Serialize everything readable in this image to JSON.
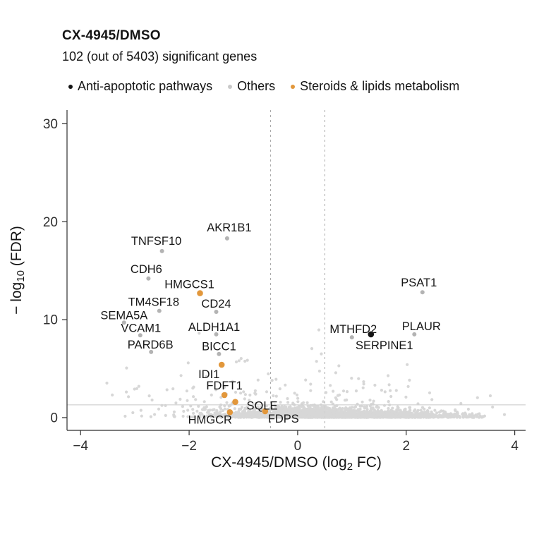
{
  "header": {
    "title": "CX-4945/DMSO",
    "subtitle": "102 (out of 5403) significant genes"
  },
  "legend": {
    "items": [
      {
        "label": "Anti-apoptotic pathways",
        "color": "#141414"
      },
      {
        "label": "Others",
        "color": "#c9c9c9"
      },
      {
        "label": "Steroids & lipids metabolism",
        "color": "#E2973B"
      }
    ]
  },
  "chart_data": {
    "type": "scatter",
    "title": "CX-4945/DMSO",
    "subtitle": "102 (out of 5403) significant genes",
    "significant_genes": 102,
    "total_genes": 5403,
    "xlabel": "CX-4945/DMSO (log2 FC)",
    "xlabel_parts": {
      "pre": "CX-4945/DMSO (log",
      "sub": "2",
      "post": " FC)"
    },
    "ylabel": "-log10 (FDR)",
    "ylabel_parts": {
      "pre": "− log",
      "sub": "10",
      "post": " (FDR)"
    },
    "xlim": [
      -4.25,
      4.2
    ],
    "ylim": [
      -1.3,
      31.4
    ],
    "x_ticks": [
      -4,
      -2,
      0,
      2,
      4
    ],
    "x_tick_labels": [
      "−4",
      "−2",
      "0",
      "2",
      "4"
    ],
    "y_ticks": [
      0,
      10,
      20,
      30
    ],
    "y_tick_labels": [
      "0",
      "10",
      "20",
      "30"
    ],
    "fc_thresholds": [
      -0.5,
      0.5
    ],
    "fdr_threshold_y": 1.3,
    "grid": false,
    "legend_position": "top",
    "categories": {
      "anti_apoptotic": "#141414",
      "others": "#b3b3b3",
      "steroids_lipids": "#E2973B"
    },
    "genes": [
      {
        "name": "TNFSF10",
        "x": -2.5,
        "y": 17.0,
        "category": "others",
        "label_offset": [
          -8,
          -9
        ]
      },
      {
        "name": "AKR1B1",
        "x": -1.3,
        "y": 18.3,
        "category": "others",
        "label_offset": [
          3,
          -10
        ]
      },
      {
        "name": "CDH6",
        "x": -2.75,
        "y": 14.2,
        "category": "others",
        "label_offset": [
          -3,
          -8
        ]
      },
      {
        "name": "HMGCS1",
        "x": -1.8,
        "y": 12.7,
        "category": "steroids_lipids",
        "label_offset": [
          -15,
          -7
        ]
      },
      {
        "name": "TM4SF18",
        "x": -2.55,
        "y": 10.9,
        "category": "others",
        "label_offset": [
          -8,
          -7
        ]
      },
      {
        "name": "CD24",
        "x": -1.5,
        "y": 10.8,
        "category": "others",
        "label_offset": [
          0,
          -6
        ]
      },
      {
        "name": "SEMA5A",
        "x": -3.2,
        "y": 9.7,
        "category": "others",
        "label_offset": [
          0,
          -5
        ]
      },
      {
        "name": "VCAM1",
        "x": -2.9,
        "y": 8.4,
        "category": "others",
        "label_offset": [
          1,
          -5
        ]
      },
      {
        "name": "ALDH1A1",
        "x": -1.5,
        "y": 8.5,
        "category": "others",
        "label_offset": [
          -3,
          -5
        ]
      },
      {
        "name": "PARD6B",
        "x": -2.7,
        "y": 6.7,
        "category": "others",
        "label_offset": [
          -1,
          -5
        ]
      },
      {
        "name": "BICC1",
        "x": -1.45,
        "y": 6.5,
        "category": "others",
        "label_offset": [
          0,
          -5
        ]
      },
      {
        "name": "IDI1",
        "x": -1.4,
        "y": 5.4,
        "category": "steroids_lipids",
        "label_offset": [
          -18,
          19
        ]
      },
      {
        "name": "FDFT1",
        "x": -1.35,
        "y": 2.3,
        "category": "steroids_lipids",
        "label_offset": [
          0,
          -8
        ]
      },
      {
        "name": "SQLE",
        "x": -1.15,
        "y": 1.6,
        "category": "steroids_lipids",
        "label_offset": [
          38,
          11
        ]
      },
      {
        "name": "HMGCR",
        "x": -1.25,
        "y": 0.55,
        "category": "steroids_lipids",
        "label_offset": [
          -28,
          16
        ]
      },
      {
        "name": "FDPS",
        "x": -0.6,
        "y": 0.65,
        "category": "steroids_lipids",
        "label_offset": [
          26,
          16
        ]
      },
      {
        "name": "PSAT1",
        "x": 2.3,
        "y": 12.8,
        "category": "others",
        "label_offset": [
          -5,
          -8
        ]
      },
      {
        "name": "MTHFD2",
        "x": 1.0,
        "y": 8.2,
        "category": "others",
        "label_offset": [
          2,
          -6
        ]
      },
      {
        "name": "PLAUR",
        "x": 2.15,
        "y": 8.5,
        "category": "others",
        "label_offset": [
          10,
          -6
        ]
      },
      {
        "name": "SERPINE1",
        "x": 1.35,
        "y": 8.5,
        "category": "anti_apoptotic",
        "label_offset": [
          19,
          21
        ]
      }
    ],
    "background_cloud": {
      "seed": 11,
      "color": "#d3d3d3",
      "opacity": 0.9,
      "radius": 2.1,
      "clusters": [
        {
          "n": 2000,
          "x_mean": 0.25,
          "x_sd": 0.85,
          "x_min": -2.3,
          "x_max": 3.4,
          "y_base": 0.02,
          "y_scale": 0.3,
          "y_max": 1.3
        },
        {
          "n": 600,
          "x_mean": 1.9,
          "x_sd": 0.85,
          "x_min": -0.3,
          "x_max": 3.45,
          "y_base": 0.02,
          "y_scale": 0.22,
          "y_max": 1.0
        },
        {
          "n": 240,
          "x_mean": 0.1,
          "x_sd": 1.5,
          "x_min": -4.15,
          "x_max": 4.05,
          "y_base": 0.08,
          "y_scale": 1.3,
          "y_max": 5.4
        },
        {
          "n": 34,
          "x_mean": -0.7,
          "x_sd": 1.7,
          "x_min": -3.7,
          "x_max": 2.55,
          "y_base": 2.2,
          "y_scale": 2.8,
          "y_max": 18.5
        }
      ]
    }
  }
}
